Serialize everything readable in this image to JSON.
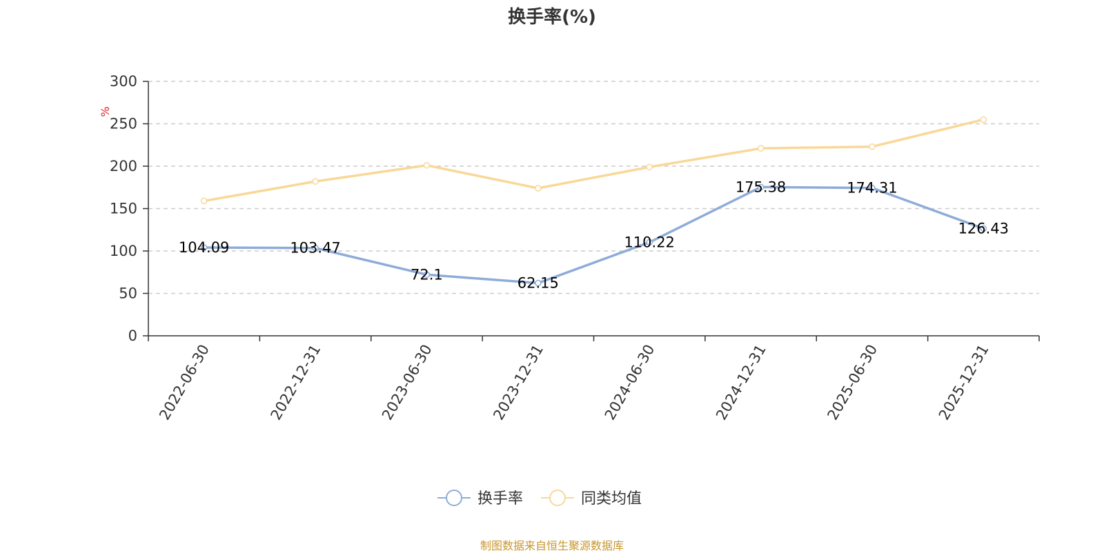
{
  "chart_data": {
    "type": "line",
    "title": "换手率(%)",
    "ylabel": "%",
    "categories": [
      "2022-06-30",
      "2022-12-31",
      "2023-06-30",
      "2023-12-31",
      "2024-06-30",
      "2024-12-31",
      "2025-06-30",
      "2025-12-31"
    ],
    "ylim": [
      0,
      300
    ],
    "yticks": [
      0,
      50,
      100,
      150,
      200,
      250,
      300
    ],
    "grid": true,
    "legend_position": "bottom",
    "series": [
      {
        "name": "换手率",
        "color": "#8eacd8",
        "values": [
          104.09,
          103.47,
          72.1,
          62.15,
          110.22,
          175.38,
          174.31,
          126.43
        ],
        "labels": [
          "104.09",
          "103.47",
          "72.1",
          "62.15",
          "110.22",
          "175.38",
          "174.31",
          "126.43"
        ]
      },
      {
        "name": "同类均值",
        "color": "#f9d897",
        "values": [
          159,
          182,
          201,
          174,
          199,
          221,
          223,
          255
        ]
      }
    ]
  },
  "footer": "制图数据来自恒生聚源数据库"
}
